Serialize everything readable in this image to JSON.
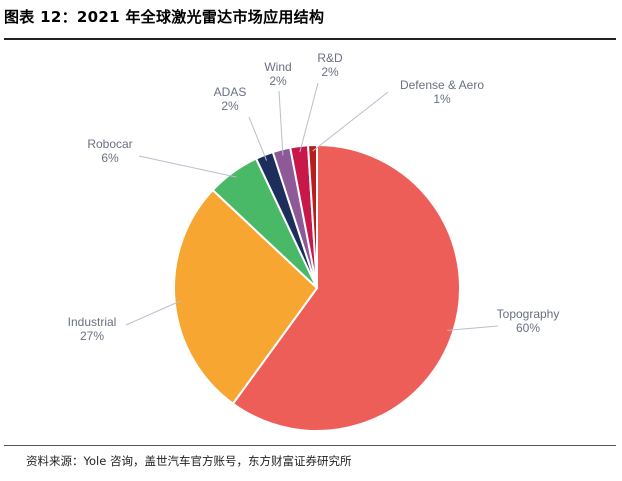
{
  "header": {
    "title": "图表 12：2021 年全球激光雷达市场应用结构"
  },
  "footer": {
    "source": "资料来源：Yole 咨询，盖世汽车官方账号，东方财富证券研究所"
  },
  "chart_data": {
    "type": "pie",
    "title": "图表 12：2021 年全球激光雷达市场应用结构",
    "start_angle_deg": 0,
    "direction": "clockwise",
    "slices": [
      {
        "name": "Topography",
        "value": 60,
        "label": "60%",
        "color": "#EE5E58"
      },
      {
        "name": "Industrial",
        "value": 27,
        "label": "27%",
        "color": "#F6A631"
      },
      {
        "name": "Robocar",
        "value": 6,
        "label": "6%",
        "color": "#49B968"
      },
      {
        "name": "ADAS",
        "value": 2,
        "label": "2%",
        "color": "#1E2E5C"
      },
      {
        "name": "Wind",
        "value": 2,
        "label": "2%",
        "color": "#8D5A97"
      },
      {
        "name": "R&D",
        "value": 2,
        "label": "2%",
        "color": "#C8184A"
      },
      {
        "name": "Defense & Aero",
        "value": 1,
        "label": "1%",
        "color": "#B81E1E"
      }
    ]
  }
}
